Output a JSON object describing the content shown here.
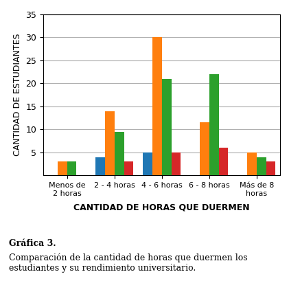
{
  "chart_data": {
    "type": "bar",
    "categories": [
      "Menos de\n2 horas",
      "2 - 4 horas",
      "4 - 6 horas",
      "6 - 8 horas",
      "Más de 8\nhoras"
    ],
    "series": [
      {
        "values": [
          0,
          4,
          5,
          0,
          0
        ]
      },
      {
        "values": [
          3,
          14,
          30,
          11.5,
          5
        ]
      },
      {
        "values": [
          3,
          9.5,
          21,
          22,
          4
        ]
      },
      {
        "values": [
          0,
          3,
          5,
          6,
          3
        ]
      }
    ],
    "xlabel": "CANTIDAD DE HORAS QUE DUERMEN",
    "ylabel": "CANTIDAD DE ESTUDIANTES",
    "ylim": [
      0,
      35
    ],
    "yticks": [
      5,
      10,
      15,
      20,
      25,
      30,
      35
    ],
    "grid": true,
    "annotations": [
      "Gráfica 3.",
      "Comparación de la cantidad de horas que duermen los estudiantes y su rendimiento universitario."
    ]
  }
}
